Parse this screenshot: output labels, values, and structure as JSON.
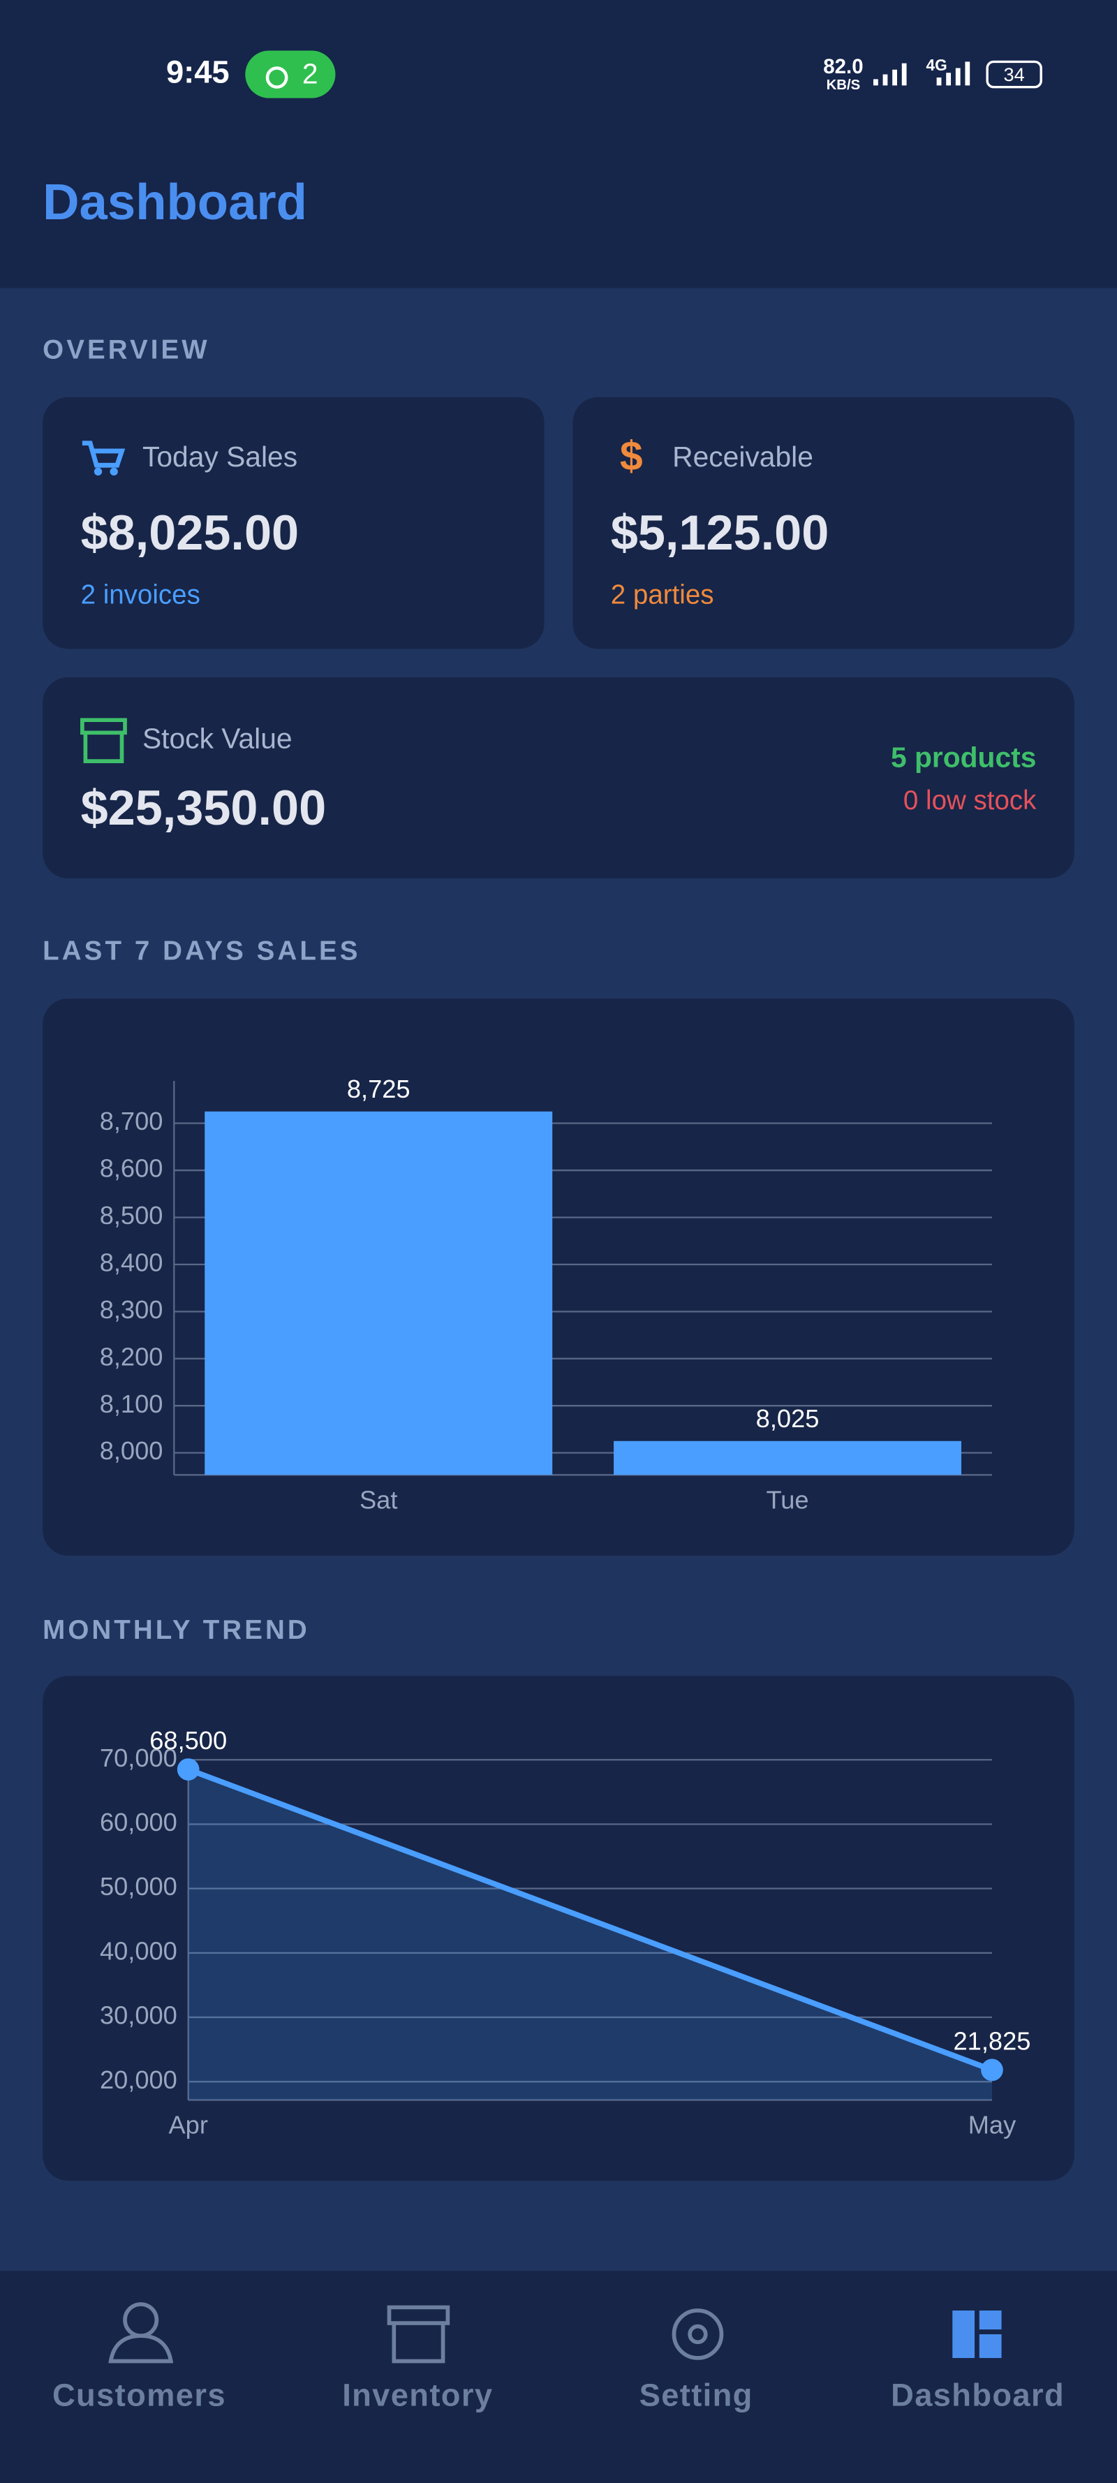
{
  "status_bar": {
    "time": "9:45",
    "hotspot": "2",
    "speed": "82.0",
    "speed_unit": "KB/S",
    "network": "4G",
    "battery": "34"
  },
  "header": {
    "title": "Dashboard"
  },
  "overview": {
    "title": "OVERVIEW",
    "cards": [
      {
        "label": "Today Sales",
        "value": "$8,025.00",
        "sub": "2 invoices"
      },
      {
        "label": "Receivable",
        "value": "$5,125.00",
        "sub": "2 parties"
      },
      {
        "label": "Stock Value",
        "value": "$25,350.00",
        "sub": "5 products",
        "sub2": "0 low stock"
      }
    ]
  },
  "chart_data": [
    {
      "type": "bar",
      "title": "LAST 7 DAYS SALES",
      "categories": [
        "Sat",
        "Tue"
      ],
      "values": [
        8725,
        8025
      ],
      "value_labels": [
        "8,725",
        "8,025"
      ],
      "color": "#4a9eff",
      "grid": true,
      "ylim": [
        7953,
        8790
      ],
      "yticks": [
        {
          "value": 8000,
          "label": "8,000"
        },
        {
          "value": 8100,
          "label": "8,100"
        },
        {
          "value": 8200,
          "label": "8,200"
        },
        {
          "value": 8300,
          "label": "8,300"
        },
        {
          "value": 8400,
          "label": "8,400"
        },
        {
          "value": 8500,
          "label": "8,500"
        },
        {
          "value": 8600,
          "label": "8,600"
        },
        {
          "value": 8700,
          "label": "8,700"
        }
      ]
    },
    {
      "type": "line",
      "title": "MONTHLY TREND",
      "categories": [
        "Apr",
        "May"
      ],
      "values": [
        68500,
        21825
      ],
      "value_labels": [
        "68,500",
        "21,825"
      ],
      "color": "#4a9eff",
      "grid": true,
      "ylim": [
        17150,
        70000
      ],
      "yticks": [
        {
          "value": 20000,
          "label": "20,000"
        },
        {
          "value": 30000,
          "label": "30,000"
        },
        {
          "value": 40000,
          "label": "40,000"
        },
        {
          "value": 50000,
          "label": "50,000"
        },
        {
          "value": 60000,
          "label": "60,000"
        },
        {
          "value": 70000,
          "label": "70,000"
        }
      ]
    }
  ],
  "nav": {
    "items": [
      "Customers",
      "Inventory",
      "Setting",
      "Dashboard"
    ],
    "active": "Dashboard"
  }
}
